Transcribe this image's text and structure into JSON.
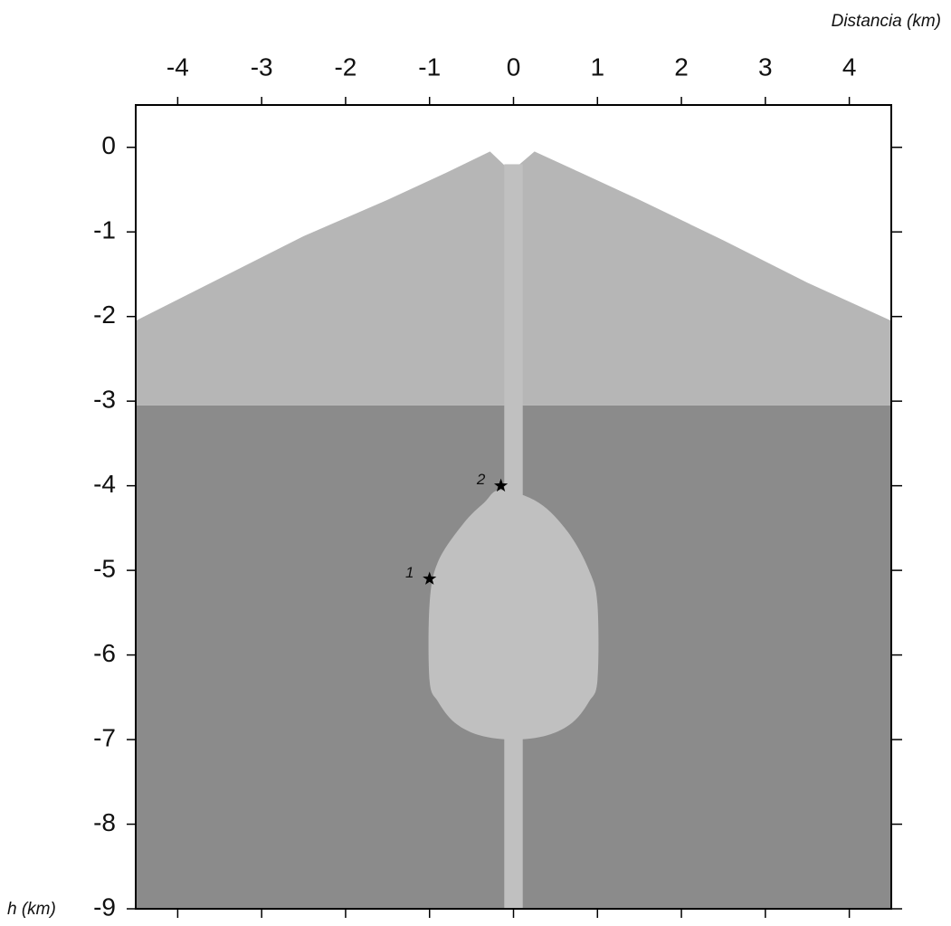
{
  "chart_data": {
    "type": "section",
    "x_label": "Distancia (km)",
    "y_label": "h (km)",
    "xlim": [
      -4.5,
      4.5
    ],
    "xticks": [
      -4,
      -3,
      -2,
      -1,
      0,
      1,
      2,
      3,
      4
    ],
    "ylim": [
      -9,
      0.5
    ],
    "yticks": [
      0,
      -1,
      -2,
      -3,
      -4,
      -5,
      -6,
      -7,
      -8,
      -9
    ],
    "surface": {
      "x": [
        -4.5,
        -3.5,
        -2.5,
        -1.5,
        -0.8,
        -0.28,
        -0.1,
        0.05,
        0.25,
        0.8,
        1.5,
        2.5,
        3.5,
        4.5
      ],
      "y": [
        -2.05,
        -1.55,
        -1.05,
        -0.62,
        -0.3,
        -0.05,
        -0.22,
        -0.22,
        -0.05,
        -0.3,
        -0.62,
        -1.1,
        -1.6,
        -2.05
      ]
    },
    "upper_color": "#b6b6b6",
    "layer_boundary": -3.05,
    "lower_color": "#8b8b8b",
    "conduit": [
      -0.11,
      0.11
    ],
    "conduit_top": -0.2,
    "intrusion_color": "#c0c0c0",
    "chamber": {
      "x": [
        -0.15,
        0.3,
        0.65,
        0.9,
        1.0,
        1.0,
        0.9,
        0.7,
        0.4,
        0.0,
        -0.4,
        -0.7,
        -0.9,
        -1.0,
        -1.0,
        -0.9,
        -0.6,
        -0.35
      ],
      "y": [
        -4.05,
        -4.2,
        -4.55,
        -5.0,
        -5.4,
        -6.3,
        -6.55,
        -6.8,
        -6.95,
        -7.0,
        -6.95,
        -6.8,
        -6.55,
        -6.3,
        -5.4,
        -4.9,
        -4.45,
        -4.2
      ]
    },
    "markers": [
      {
        "label": "1",
        "x": -1.0,
        "y": -5.1
      },
      {
        "label": "2",
        "x": -0.15,
        "y": -4.0
      }
    ]
  }
}
